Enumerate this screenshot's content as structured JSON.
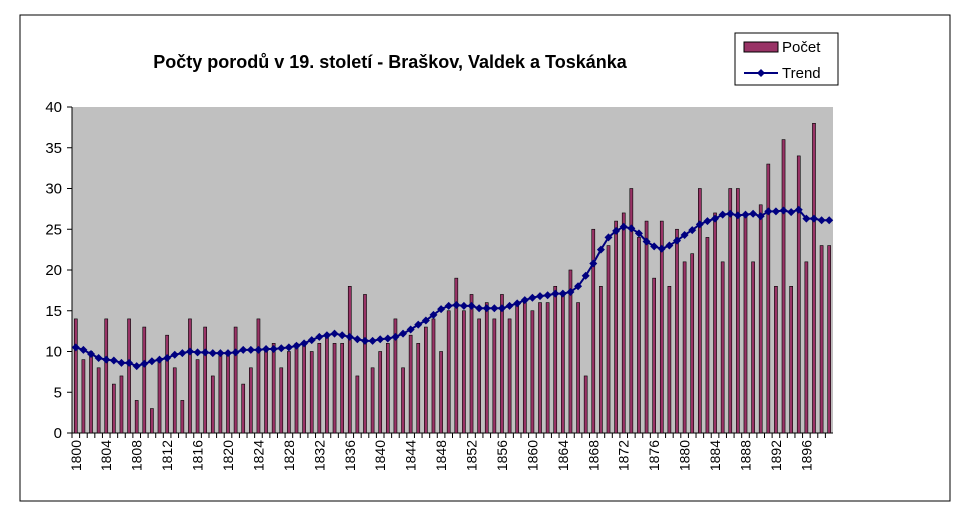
{
  "chart_data": {
    "type": "bar",
    "title": "Počty porodů v 19. století - Braškov, Valdek a Toskánka",
    "categories": [
      "1800",
      null,
      null,
      null,
      "1804",
      null,
      null,
      null,
      "1808",
      null,
      null,
      null,
      "1812",
      null,
      null,
      null,
      "1816",
      null,
      null,
      null,
      "1820",
      null,
      null,
      null,
      "1824",
      null,
      null,
      null,
      "1828",
      null,
      null,
      null,
      "1832",
      null,
      null,
      null,
      "1836",
      null,
      null,
      null,
      "1840",
      null,
      null,
      null,
      "1844",
      null,
      null,
      null,
      "1848",
      null,
      null,
      null,
      "1852",
      null,
      null,
      null,
      "1856",
      null,
      null,
      null,
      "1860",
      null,
      null,
      null,
      "1864",
      null,
      null,
      null,
      "1868",
      null,
      null,
      null,
      "1872",
      null,
      null,
      null,
      "1876",
      null,
      null,
      null,
      "1880",
      null,
      null,
      null,
      "1884",
      null,
      null,
      null,
      "1888",
      null,
      null,
      null,
      "1892",
      null,
      null,
      null,
      "1896",
      null,
      null,
      null
    ],
    "series": [
      {
        "name": "Počet",
        "type": "bar",
        "color": "#993366",
        "values": [
          14,
          9,
          10,
          8,
          14,
          6,
          7,
          14,
          4,
          13,
          3,
          9,
          12,
          8,
          4,
          14,
          9,
          13,
          7,
          10,
          10,
          13,
          6,
          8,
          14,
          10,
          11,
          8,
          10,
          11,
          11,
          10,
          11,
          12,
          11,
          11,
          18,
          7,
          17,
          8,
          10,
          11,
          14,
          8,
          12,
          11,
          13,
          14,
          10,
          15,
          19,
          15,
          17,
          14,
          16,
          14,
          17,
          14,
          16,
          16,
          15,
          16,
          16,
          18,
          17,
          20,
          16,
          7,
          25,
          18,
          23,
          26,
          27,
          30,
          24,
          26,
          19,
          26,
          18,
          25,
          21,
          22,
          30,
          24,
          27,
          21,
          30,
          30,
          27,
          21,
          28,
          33,
          18,
          36,
          18,
          34,
          21,
          38,
          23,
          23
        ]
      },
      {
        "name": "Trend",
        "type": "line",
        "color": "#000080",
        "values": [
          10.5,
          10.2,
          9.7,
          9.2,
          9.0,
          8.9,
          8.6,
          8.6,
          8.2,
          8.5,
          8.8,
          9.0,
          9.2,
          9.6,
          9.8,
          10.0,
          9.9,
          9.9,
          9.8,
          9.8,
          9.8,
          9.9,
          10.2,
          10.2,
          10.2,
          10.3,
          10.3,
          10.4,
          10.5,
          10.7,
          11.0,
          11.4,
          11.8,
          12.0,
          12.2,
          12.0,
          11.8,
          11.5,
          11.3,
          11.3,
          11.5,
          11.6,
          11.8,
          12.2,
          12.7,
          13.3,
          13.8,
          14.5,
          15.2,
          15.6,
          15.7,
          15.6,
          15.6,
          15.3,
          15.3,
          15.3,
          15.3,
          15.6,
          15.9,
          16.3,
          16.6,
          16.8,
          16.9,
          17.1,
          17.1,
          17.3,
          18.0,
          19.3,
          20.8,
          22.5,
          24.0,
          24.8,
          25.3,
          25.1,
          24.5,
          23.5,
          22.9,
          22.6,
          23.0,
          23.6,
          24.3,
          24.9,
          25.6,
          26.0,
          26.3,
          26.8,
          26.9,
          26.7,
          26.8,
          26.9,
          26.6,
          27.2,
          27.2,
          27.3,
          27.1,
          27.4,
          26.3,
          26.3,
          26.1,
          26.1
        ]
      }
    ],
    "ylim": [
      0,
      40
    ],
    "yticks": [
      0,
      5,
      10,
      15,
      20,
      25,
      30,
      35,
      40
    ],
    "grid": false,
    "legend": "top-right",
    "plot_background": "#c0c0c0"
  }
}
